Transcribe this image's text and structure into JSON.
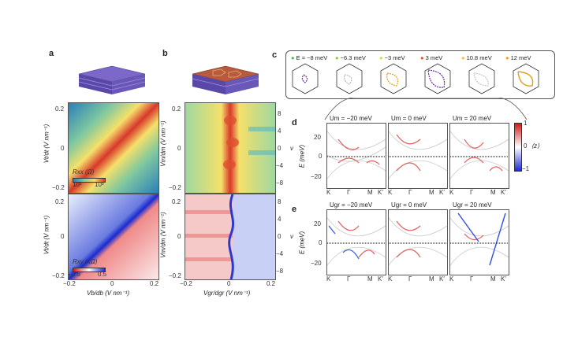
{
  "panels": {
    "a": {
      "label": "a",
      "top_map": {
        "ylabel": "Vt/dt (V nm⁻¹)",
        "yticks": [
          "0.2",
          "0",
          "−0.2"
        ],
        "cbar_label": "Rxx (Ω)",
        "cbar_ticks": [
          "10¹",
          "10³"
        ]
      },
      "bottom_map": {
        "ylabel": "Vt/dt (V nm⁻¹)",
        "yticks": [
          "0.2",
          "0",
          "−0.2"
        ],
        "cbar_label": "Rxy (kΩ)",
        "cbar_ticks": [
          "−0.5",
          "0.5"
        ],
        "xlabel": "Vb/db (V nm⁻¹)",
        "xticks": [
          "−0.2",
          "0",
          "0.2"
        ]
      }
    },
    "b": {
      "label": "b",
      "top_map": {
        "ylabel": "Vm/dm (V nm⁻¹)",
        "yticks": [
          "0.2",
          "0",
          "−0.2"
        ],
        "right_label": "ν",
        "right_ticks": [
          "8",
          "4",
          "0",
          "−4",
          "−8"
        ]
      },
      "bottom_map": {
        "ylabel": "Vm/dm (V nm⁻¹)",
        "yticks": [
          "0.2",
          "0",
          "−0.2"
        ],
        "right_label": "ν",
        "right_ticks": [
          "8",
          "4",
          "0",
          "−4",
          "−8"
        ],
        "xlabel": "Vgr/dgr (V nm⁻¹)",
        "xticks": [
          "−0.2",
          "0",
          "0.2"
        ]
      }
    },
    "c": {
      "label": "c",
      "legend": [
        {
          "text": "E = −8 meV",
          "color": "#4caf50"
        },
        {
          "text": "−6.3 meV",
          "color": "#8bc34a"
        },
        {
          "text": "−3 meV",
          "color": "#cddc39"
        },
        {
          "text": "3 meV",
          "color": "#e64a19"
        },
        {
          "text": "10.8 meV",
          "color": "#ffb74d"
        },
        {
          "text": "12 meV",
          "color": "#ff9800"
        }
      ]
    },
    "d": {
      "label": "d",
      "titles": [
        "Um = −20 meV",
        "Um = 0 meV",
        "Um = 20 meV"
      ],
      "ylabel": "E (meV)",
      "yticks": [
        "20",
        "0",
        "−20"
      ],
      "xticks": [
        "K",
        "Γ",
        "M",
        "K′"
      ],
      "cbar_label": "⟨z⟩",
      "cbar_ticks": [
        "1",
        "0",
        "−1"
      ]
    },
    "e": {
      "label": "e",
      "titles": [
        "Ugr = −20 meV",
        "Ugr = 0 meV",
        "Ugr = 20 meV"
      ],
      "ylabel": "E (meV)",
      "yticks": [
        "20",
        "0",
        "−20"
      ],
      "xticks": [
        "K",
        "Γ",
        "M",
        "K′"
      ]
    }
  }
}
